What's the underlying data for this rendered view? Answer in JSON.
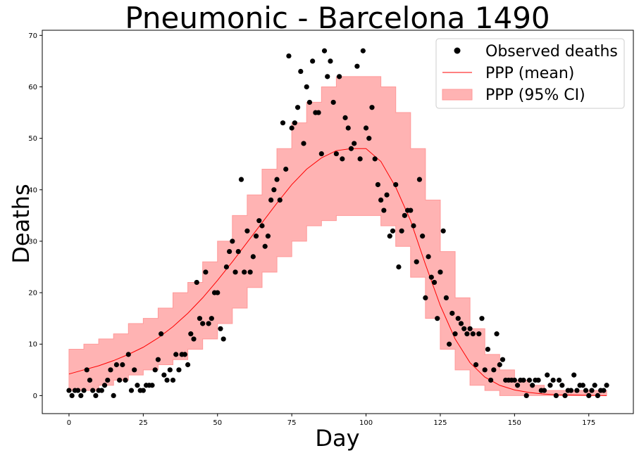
{
  "chart_data": {
    "type": "scatter",
    "title": "Pneumonic - Barcelona 1490",
    "xlabel": "Day",
    "ylabel": "Deaths",
    "xlim": [
      -9,
      190
    ],
    "ylim": [
      -3.5,
      71
    ],
    "xticks": [
      0,
      25,
      50,
      75,
      100,
      125,
      150,
      175
    ],
    "yticks": [
      0,
      10,
      20,
      30,
      40,
      50,
      60,
      70
    ],
    "grid": false,
    "legend_position": "top-right",
    "legend": {
      "observed": "Observed deaths",
      "mean": "PPP (mean)",
      "ci": "PPP (95% CI)"
    },
    "colors": {
      "observed": "#000000",
      "mean": "#ff0000",
      "ci_fill": "#ffb3b3",
      "ci_edge": "#ff9999"
    },
    "observed": {
      "x": [
        0,
        1,
        2,
        3,
        4,
        5,
        6,
        7,
        8,
        9,
        10,
        11,
        12,
        13,
        14,
        15,
        16,
        17,
        18,
        19,
        20,
        21,
        22,
        23,
        24,
        25,
        26,
        27,
        28,
        29,
        30,
        31,
        32,
        33,
        34,
        35,
        36,
        37,
        38,
        39,
        40,
        41,
        42,
        43,
        44,
        45,
        46,
        47,
        48,
        49,
        50,
        51,
        52,
        53,
        54,
        55,
        56,
        57,
        58,
        59,
        60,
        61,
        62,
        63,
        64,
        65,
        66,
        67,
        68,
        69,
        70,
        71,
        72,
        73,
        74,
        75,
        76,
        77,
        78,
        79,
        80,
        81,
        82,
        83,
        84,
        85,
        86,
        87,
        88,
        89,
        90,
        91,
        92,
        93,
        94,
        95,
        96,
        97,
        98,
        99,
        100,
        101,
        102,
        103,
        104,
        105,
        106,
        107,
        108,
        109,
        110,
        111,
        112,
        113,
        114,
        115,
        116,
        117,
        118,
        119,
        120,
        121,
        122,
        123,
        124,
        125,
        126,
        127,
        128,
        129,
        130,
        131,
        132,
        133,
        134,
        135,
        136,
        137,
        138,
        139,
        140,
        141,
        142,
        143,
        144,
        145,
        146,
        147,
        148,
        149,
        150,
        151,
        152,
        153,
        154,
        155,
        156,
        157,
        158,
        159,
        160,
        161,
        162,
        163,
        164,
        165,
        166,
        167,
        168,
        169,
        170,
        171,
        172,
        173,
        174,
        175,
        176,
        177,
        178,
        179,
        180,
        181
      ],
      "y": [
        1,
        0,
        1,
        1,
        0,
        1,
        5,
        3,
        1,
        0,
        1,
        1,
        2,
        3,
        5,
        0,
        6,
        3,
        6,
        3,
        8,
        1,
        5,
        2,
        1,
        1,
        2,
        2,
        2,
        5,
        7,
        12,
        4,
        3,
        5,
        3,
        8,
        5,
        8,
        8,
        6,
        12,
        11,
        22,
        15,
        14,
        24,
        14,
        15,
        20,
        20,
        13,
        11,
        25,
        28,
        30,
        24,
        28,
        42,
        24,
        32,
        24,
        27,
        31,
        34,
        33,
        29,
        31,
        38,
        40,
        42,
        38,
        53,
        44,
        66,
        52,
        53,
        56,
        63,
        49,
        60,
        57,
        65,
        55,
        55,
        47,
        67,
        62,
        65,
        57,
        47,
        62,
        46,
        54,
        52,
        48,
        49,
        64,
        46,
        67,
        52,
        50,
        56,
        46,
        41,
        38,
        36,
        39,
        31,
        32,
        41,
        25,
        32,
        35,
        36,
        36,
        33,
        26,
        42,
        31,
        19,
        27,
        23,
        22,
        15,
        24,
        32,
        19,
        10,
        16,
        12,
        15,
        14,
        13,
        12,
        13,
        12,
        6,
        12,
        15,
        5,
        9,
        3,
        5,
        12,
        6,
        7,
        3,
        3,
        3,
        3,
        2,
        3,
        3,
        0,
        3,
        2,
        3,
        3,
        1,
        1,
        4,
        2,
        3,
        0,
        3,
        2,
        0,
        1,
        1,
        4,
        1,
        2,
        2,
        1,
        0,
        1,
        2,
        0,
        1,
        1,
        2
      ]
    },
    "mean": {
      "x": [
        0,
        5,
        10,
        15,
        20,
        25,
        30,
        35,
        40,
        45,
        50,
        55,
        60,
        65,
        70,
        75,
        80,
        85,
        90,
        95,
        100,
        105,
        110,
        115,
        120,
        125,
        130,
        135,
        140,
        145,
        150,
        155,
        160,
        165,
        170,
        175,
        181
      ],
      "y": [
        4.2,
        5.0,
        5.8,
        6.8,
        8.0,
        9.4,
        11.2,
        13.4,
        16.0,
        19.0,
        22.4,
        26.0,
        29.8,
        33.6,
        37.4,
        41.0,
        44.0,
        46.2,
        47.6,
        48.0,
        48.0,
        45.5,
        40.5,
        34.0,
        25.5,
        17.5,
        11.0,
        6.4,
        3.6,
        2.0,
        1.1,
        0.6,
        0.3,
        0.15,
        0.1,
        0.05,
        0.0
      ]
    },
    "ci": {
      "x": [
        0,
        5,
        10,
        15,
        20,
        25,
        30,
        35,
        40,
        45,
        50,
        55,
        60,
        65,
        70,
        75,
        80,
        85,
        90,
        95,
        100,
        105,
        110,
        115,
        120,
        125,
        130,
        135,
        140,
        145,
        150,
        155,
        160,
        165,
        170,
        175,
        181
      ],
      "lower": [
        1,
        1,
        2,
        3,
        4,
        5,
        6,
        7,
        9,
        11,
        14,
        17,
        21,
        24,
        27,
        30,
        33,
        34,
        35,
        35,
        35,
        33,
        29,
        23,
        15,
        9,
        5,
        2,
        1,
        0,
        0,
        0,
        0,
        0,
        0,
        0,
        0
      ],
      "upper": [
        9,
        10,
        11,
        12,
        14,
        15,
        17,
        20,
        22,
        26,
        30,
        35,
        39,
        44,
        48,
        53,
        57,
        60,
        62,
        62,
        62,
        60,
        55,
        48,
        38,
        28,
        19,
        13,
        8,
        5,
        3,
        2,
        1,
        1,
        1,
        1,
        1
      ]
    }
  }
}
